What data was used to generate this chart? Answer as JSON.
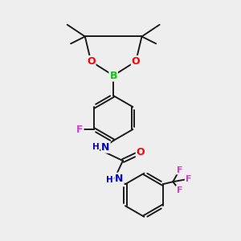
{
  "background_color": "#eeeeee",
  "bond_color": "#1a1a1a",
  "bond_lw": 1.4,
  "atom_colors": {
    "O": "#ff0000",
    "B": "#00cc00",
    "N": "#0000cc",
    "F": "#cc44cc",
    "H": "#448888"
  },
  "figsize": [
    3.0,
    3.0
  ],
  "dpi": 100
}
